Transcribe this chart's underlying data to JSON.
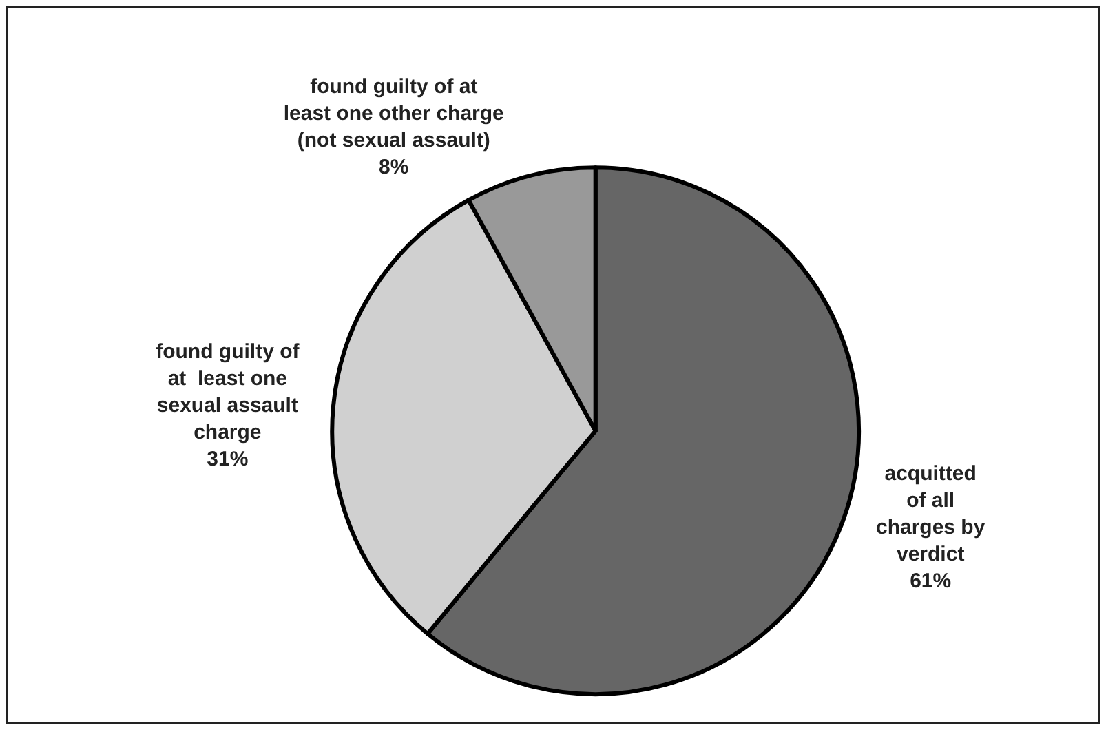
{
  "chart_data": {
    "type": "pie",
    "categories": [
      "acquitted\nof all\ncharges by\nverdict",
      "found guilty of\nat  least one\nsexual assault\ncharge",
      "found guilty of at\nleast one other charge\n(not sexual assault)"
    ],
    "values": [
      61,
      31,
      8
    ],
    "value_labels": [
      "61%",
      "31%",
      "8%"
    ],
    "colors": [
      "#666666",
      "#d0d0d0",
      "#999999"
    ],
    "legend": false
  }
}
